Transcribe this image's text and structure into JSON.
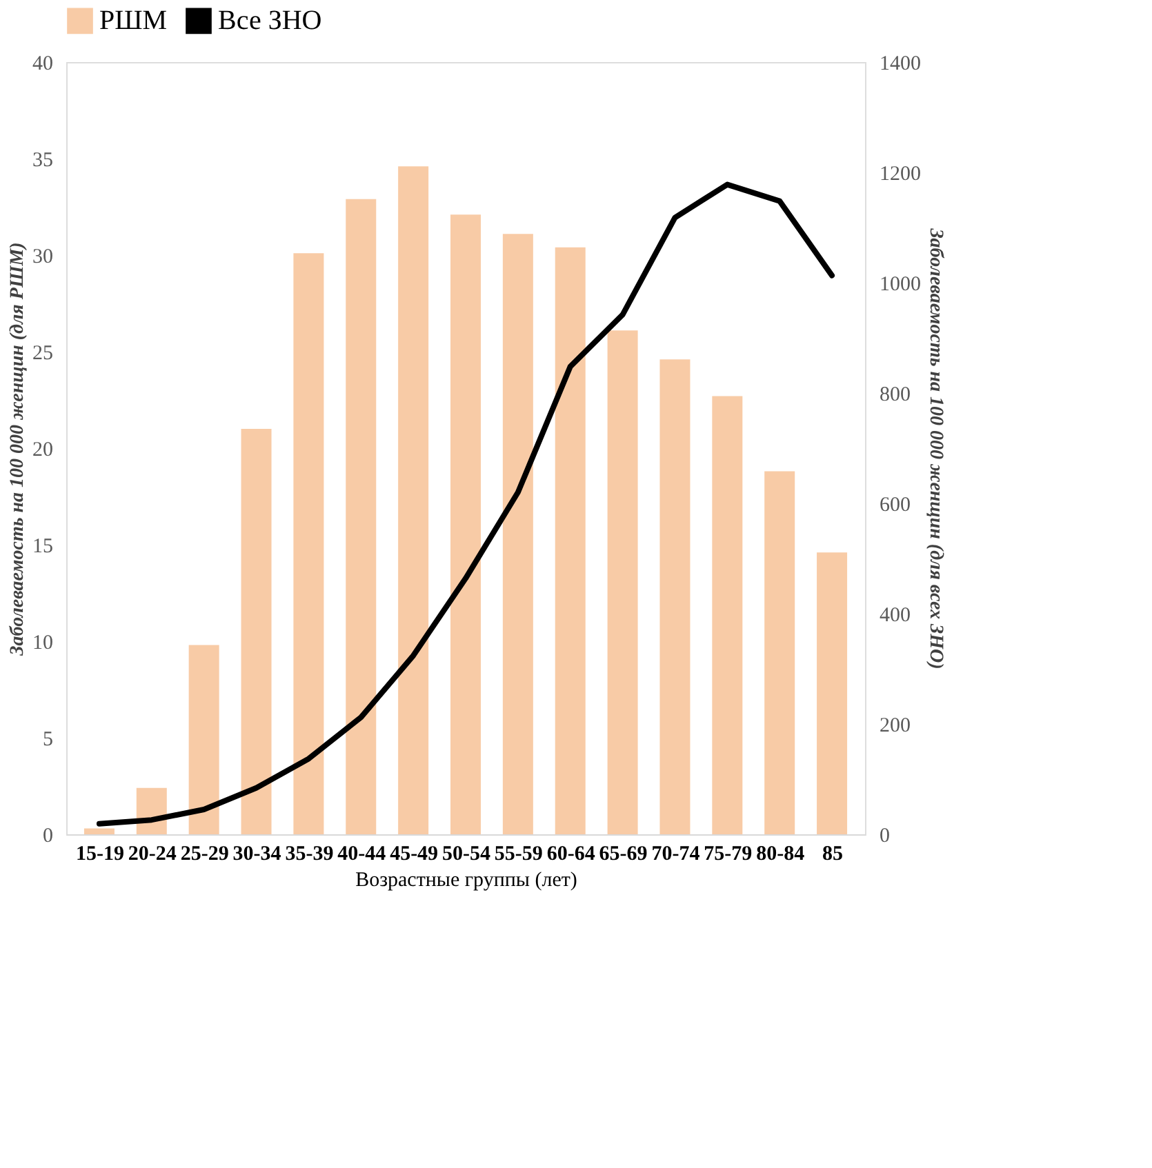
{
  "chart_data": {
    "type": "bar",
    "xlabel": "Возрастные группы (лет)",
    "ylabel": "Заболеваемость на 100 000 женщин (для РШМ)",
    "y2label": "Заболеваемость на 100 000 женщин (для всех ЗНО)",
    "categories": [
      "15-19",
      "20-24",
      "25-29",
      "30-34",
      "35-39",
      "40-44",
      "45-49",
      "50-54",
      "55-59",
      "60-64",
      "65-69",
      "70-74",
      "75-79",
      "80-84",
      "85"
    ],
    "series": [
      {
        "name": "РШМ",
        "color": "#f8cba6",
        "values": [
          0.3,
          2.4,
          9.8,
          21.0,
          30.1,
          32.9,
          34.6,
          32.1,
          31.1,
          30.4,
          26.1,
          24.6,
          22.7,
          18.8,
          14.6
        ]
      },
      {
        "name": "Все ЗНО",
        "type": "line",
        "axis": "y2",
        "color": "#000000",
        "values": [
          19,
          26,
          45,
          84,
          137,
          212,
          324,
          464,
          620,
          848,
          942,
          1118,
          1178,
          1148,
          1013
        ]
      }
    ],
    "ylim": [
      0,
      40
    ],
    "yticks": [
      0,
      5,
      10,
      15,
      20,
      25,
      30,
      35,
      40
    ],
    "y2lim": [
      0,
      1400
    ],
    "y2ticks": [
      0,
      200,
      400,
      600,
      800,
      1000,
      1200,
      1400
    ],
    "grid": false,
    "legend": "top",
    "marker": "none",
    "line_style": "solid"
  }
}
